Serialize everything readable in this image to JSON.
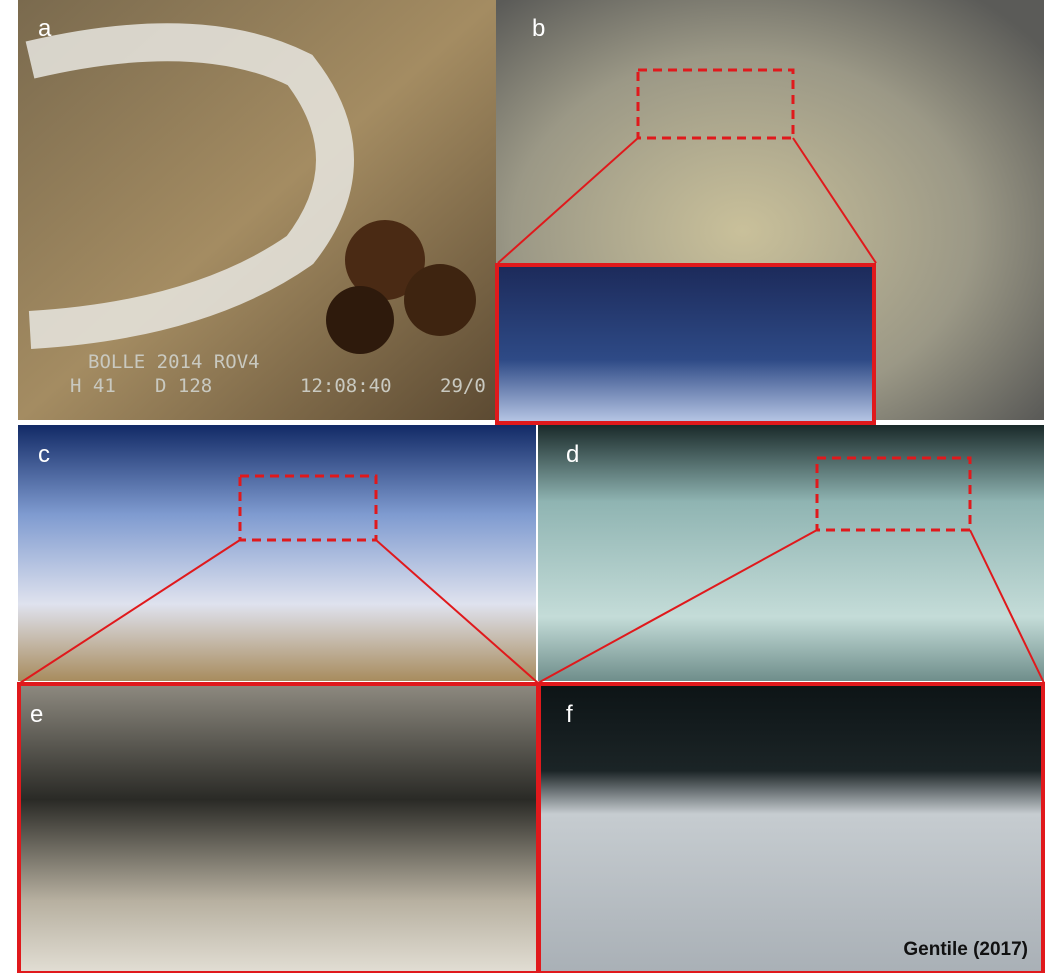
{
  "panels": [
    {
      "label": "a"
    },
    {
      "label": "b"
    },
    {
      "label": "c"
    },
    {
      "label": "d"
    },
    {
      "label": "e"
    },
    {
      "label": "f"
    }
  ],
  "overlay": {
    "line1": "BOLLE 2014 ROV4",
    "depth_h": "H 41",
    "depth_d": "D 128",
    "time": "12:08:40",
    "date": "29/0"
  },
  "credit": "Gentile (2017)"
}
